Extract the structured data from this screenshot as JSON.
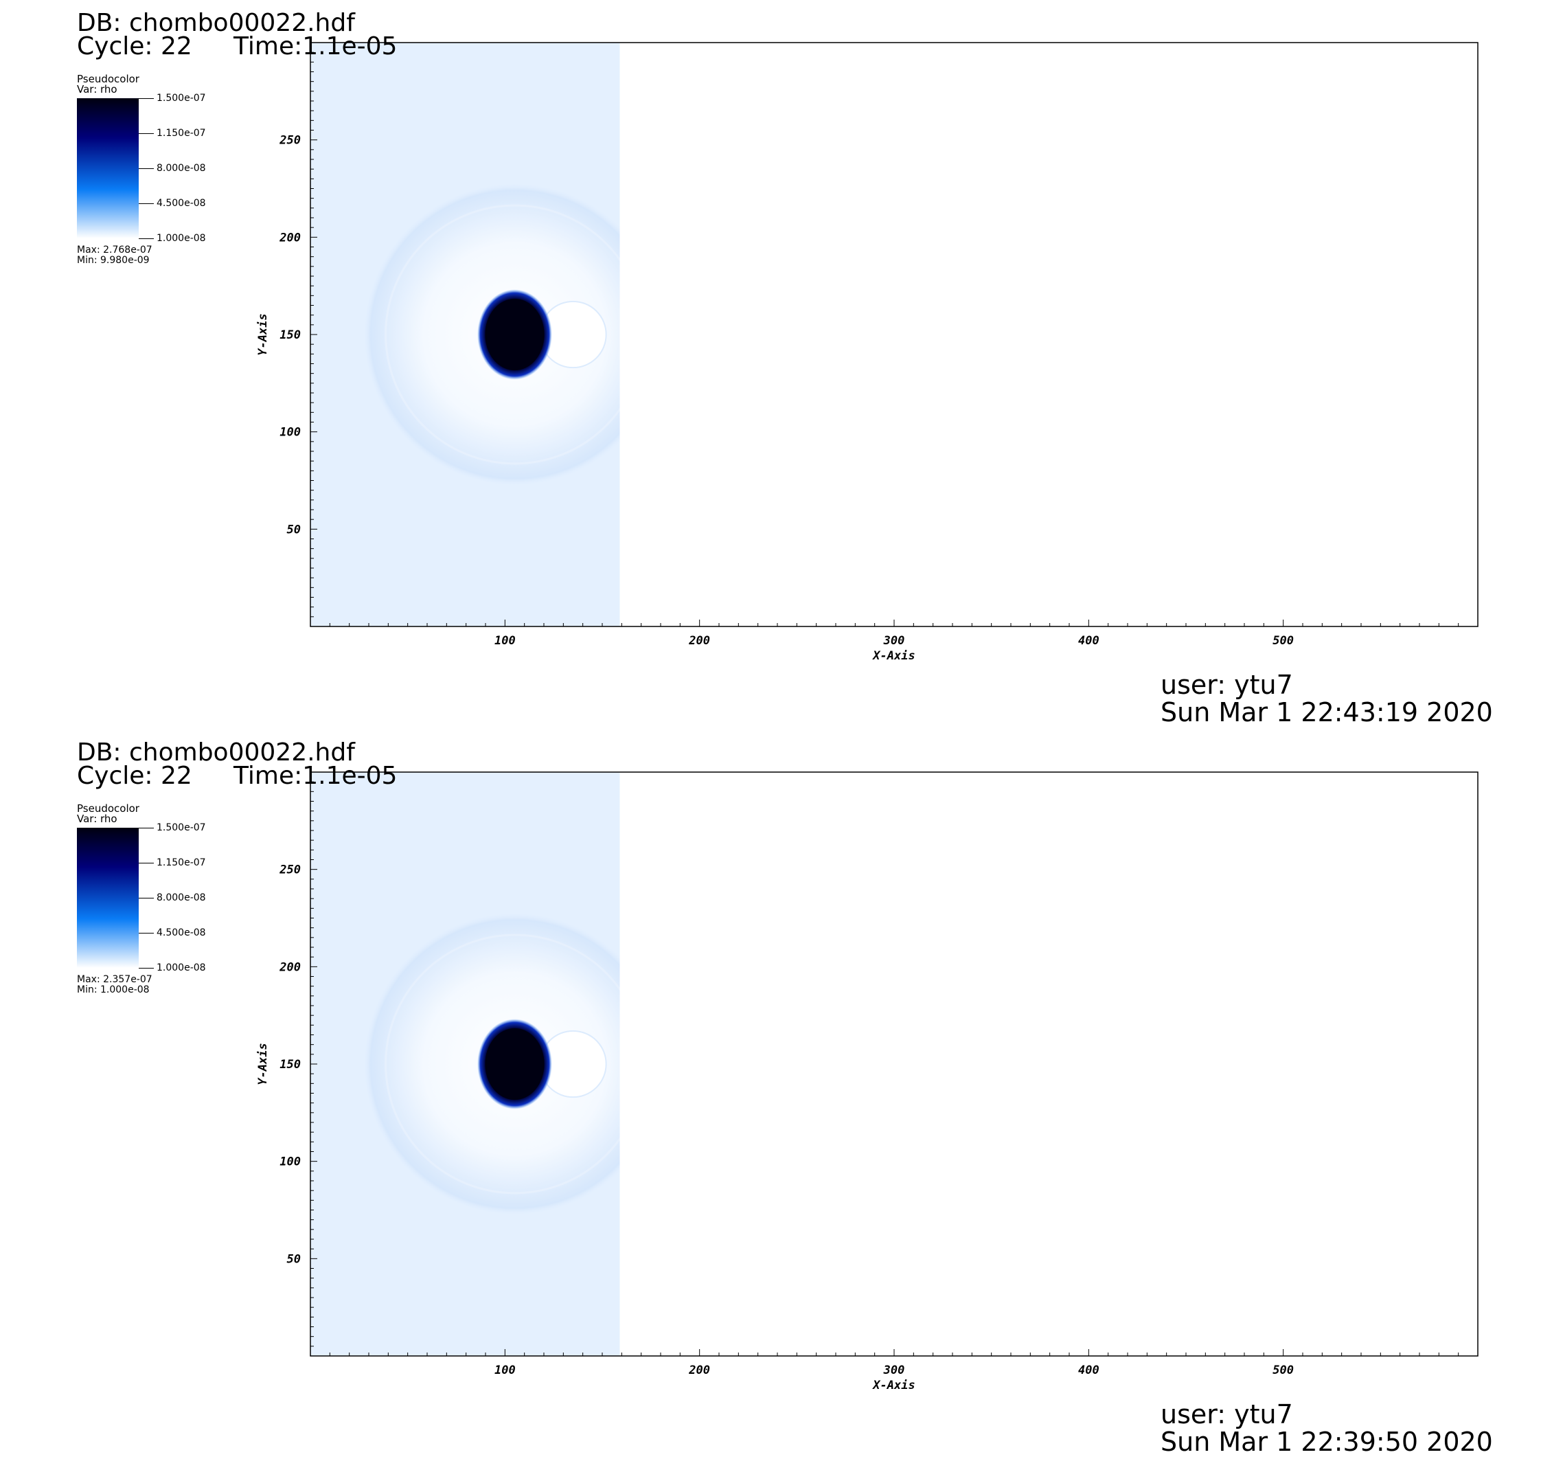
{
  "colors": {
    "colormap": [
      "#ffffff",
      "#0a7cf5",
      "#00007a",
      "#000010"
    ],
    "field": "#e4f0fe",
    "shell": "#d6e7fc",
    "blob": "#000012"
  },
  "panels": [
    {
      "db": "DB: chombo00022.hdf",
      "cycle": "Cycle: 22",
      "time": "Time:1.1e-05",
      "legend": {
        "plot_type": "Pseudocolor",
        "var": "Var: rho",
        "ticks": [
          "1.500e-07",
          "1.150e-07",
          "8.000e-08",
          "4.500e-08",
          "1.000e-08"
        ],
        "max": "Max:  2.768e-07",
        "min": "Min:  9.980e-09"
      },
      "user": "user: ytu7",
      "date": "Sun Mar  1 22:43:19 2020"
    },
    {
      "db": "DB: chombo00022.hdf",
      "cycle": "Cycle: 22",
      "time": "Time:1.1e-05",
      "legend": {
        "plot_type": "Pseudocolor",
        "var": "Var: rho",
        "ticks": [
          "1.500e-07",
          "1.150e-07",
          "8.000e-08",
          "4.500e-08",
          "1.000e-08"
        ],
        "max": "Max:  2.357e-07",
        "min": "Min:  1.000e-08"
      },
      "user": "user: ytu7",
      "date": "Sun Mar  1 22:39:50 2020"
    }
  ],
  "chart_data": [
    {
      "type": "heatmap",
      "title": "DB: chombo00022.hdf",
      "xlabel": "X-Axis",
      "ylabel": "Y-Axis",
      "xlim": [
        0,
        600
      ],
      "ylim": [
        0,
        300
      ],
      "x_ticks": [
        "100",
        "200",
        "300",
        "400",
        "500"
      ],
      "y_ticks": [
        "50",
        "100",
        "150",
        "200",
        "250"
      ],
      "variable": "rho",
      "colorbar_range": [
        1e-08,
        1.5e-07
      ],
      "data_max": 2.768e-07,
      "data_min": 9.98e-09,
      "features": {
        "filled_region_x_max": 159,
        "dense_blob_center": [
          105,
          150
        ],
        "dense_blob_radius": 16,
        "shell_center": [
          105,
          150
        ],
        "shell_radius": 78
      }
    },
    {
      "type": "heatmap",
      "title": "DB: chombo00022.hdf",
      "xlabel": "X-Axis",
      "ylabel": "Y-Axis",
      "xlim": [
        0,
        600
      ],
      "ylim": [
        0,
        300
      ],
      "x_ticks": [
        "100",
        "200",
        "300",
        "400",
        "500"
      ],
      "y_ticks": [
        "50",
        "100",
        "150",
        "200",
        "250"
      ],
      "variable": "rho",
      "colorbar_range": [
        1e-08,
        1.5e-07
      ],
      "data_max": 2.357e-07,
      "data_min": 1e-08,
      "features": {
        "filled_region_x_max": 159,
        "dense_blob_center": [
          105,
          150
        ],
        "dense_blob_radius": 16,
        "shell_center": [
          105,
          150
        ],
        "shell_radius": 78
      }
    }
  ]
}
